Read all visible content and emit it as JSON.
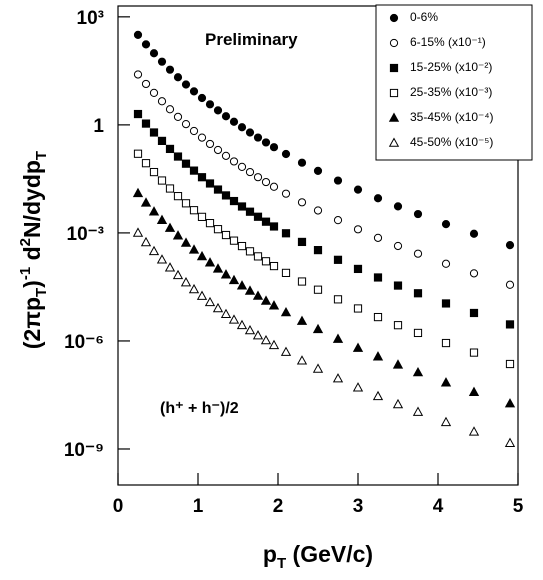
{
  "chart_data": {
    "type": "scatter",
    "ylabel": [
      "(2πp",
      "T",
      ")",
      "-1",
      " d",
      "2",
      "N/dydp",
      "T"
    ],
    "xlabel": [
      "p",
      "T",
      " (GeV/c)"
    ],
    "annotations": [
      "Preliminary",
      "(h⁺ + h⁻)/2"
    ],
    "log_y": true,
    "legend": "top-right",
    "xlim": [
      0,
      5
    ],
    "xticks": [
      0,
      1,
      2,
      3,
      4,
      5
    ],
    "ylim": [
      1e-10,
      2000
    ],
    "yticks": [
      {
        "value": 1000,
        "label": "10³"
      },
      1,
      {
        "value": 0.001,
        "label": "10⁻³"
      },
      {
        "value": 1e-06,
        "label": "10⁻⁶"
      },
      {
        "value": 1e-09,
        "label": "10⁻⁹"
      }
    ],
    "x": [
      0.25,
      0.35,
      0.45,
      0.55,
      0.65,
      0.75,
      0.85,
      0.95,
      1.05,
      1.15,
      1.25,
      1.35,
      1.45,
      1.55,
      1.65,
      1.75,
      1.85,
      1.95,
      2.1,
      2.3,
      2.5,
      2.75,
      3.0,
      3.25,
      3.5,
      3.75,
      4.1,
      4.45,
      4.9
    ],
    "series": [
      {
        "name": "0-6%",
        "color": "#000000",
        "marker": "circle",
        "filled": true,
        "values": [
          316,
          172,
          97.5,
          56.9,
          34.1,
          21.0,
          13.2,
          8.51,
          5.57,
          3.73,
          2.53,
          1.74,
          1.22,
          0.859,
          0.615,
          0.445,
          0.325,
          0.24,
          0.155,
          0.0891,
          0.0528,
          0.0284,
          0.0159,
          0.00918,
          0.00547,
          0.00334,
          0.00175,
          0.000948,
          0.000457
        ]
      },
      {
        "name": "6-15% (x10⁻¹)",
        "color": "#000000",
        "marker": "circle",
        "filled": false,
        "values": [
          25.1,
          13.7,
          7.74,
          4.52,
          2.71,
          1.667,
          1.05,
          0.676,
          0.443,
          0.296,
          0.201,
          0.138,
          0.0966,
          0.0682,
          0.0489,
          0.0353,
          0.0258,
          0.0191,
          0.0123,
          0.00708,
          0.0042,
          0.00226,
          0.00126,
          0.000729,
          0.000434,
          0.000265,
          0.000139,
          7.53e-05,
          3.63e-05
        ]
      },
      {
        "name": "15-25% (x10⁻²)",
        "color": "#000000",
        "marker": "square",
        "filled": true,
        "values": [
          2.0,
          1.086,
          0.615,
          0.359,
          0.215,
          0.132,
          0.0836,
          0.0537,
          0.0352,
          0.0236,
          0.016,
          0.011,
          0.00767,
          0.00542,
          0.00388,
          0.00281,
          0.00205,
          0.00151,
          0.000977,
          0.000562,
          0.000333,
          0.000179,
          0.0001,
          5.79e-05,
          3.45e-05,
          2.11e-05,
          1.1e-05,
          5.98e-06,
          2.88e-06
        ]
      },
      {
        "name": "25-35% (x10⁻³)",
        "color": "#000000",
        "marker": "square",
        "filled": false,
        "values": [
          0.158,
          0.0863,
          0.0489,
          0.0285,
          0.0171,
          0.0105,
          0.00664,
          0.00427,
          0.00279,
          0.00187,
          0.00127,
          0.000873,
          0.00061,
          0.000431,
          0.000308,
          0.000223,
          0.000163,
          0.00012,
          7.76e-05,
          4.47e-05,
          2.65e-05,
          1.43e-05,
          7.98e-06,
          4.6e-06,
          2.74e-06,
          1.67e-06,
          8.75e-07,
          4.75e-07,
          2.29e-07
        ]
      },
      {
        "name": "35-45% (x10⁻⁴)",
        "color": "#000000",
        "marker": "triangle",
        "filled": true,
        "values": [
          0.0126,
          0.00685,
          0.00388,
          0.00226,
          0.00136,
          0.000836,
          0.000527,
          0.000339,
          0.000222,
          0.000149,
          0.000101,
          6.93e-05,
          4.84e-05,
          3.42e-05,
          2.45e-05,
          1.77e-05,
          1.29e-05,
          9.55e-06,
          6.17e-06,
          3.55e-06,
          2.1e-06,
          1.13e-06,
          6.34e-07,
          3.66e-07,
          2.18e-07,
          1.33e-07,
          6.95e-08,
          3.78e-08,
          1.82e-08
        ]
      },
      {
        "name": "45-50% (x10⁻⁵)",
        "color": "#000000",
        "marker": "triangle",
        "filled": false,
        "values": [
          0.001,
          0.000545,
          0.000308,
          0.00018,
          0.000108,
          6.64e-05,
          4.19e-05,
          2.69e-05,
          1.76e-05,
          1.18e-05,
          8e-06,
          5.51e-06,
          3.85e-06,
          2.72e-06,
          1.95e-06,
          1.41e-06,
          1.03e-06,
          7.59e-07,
          4.9e-07,
          2.82e-07,
          1.67e-07,
          9e-08,
          5.04e-08,
          2.9e-08,
          1.73e-08,
          1.06e-08,
          5.52e-09,
          3e-09,
          1.45e-09
        ]
      }
    ]
  }
}
